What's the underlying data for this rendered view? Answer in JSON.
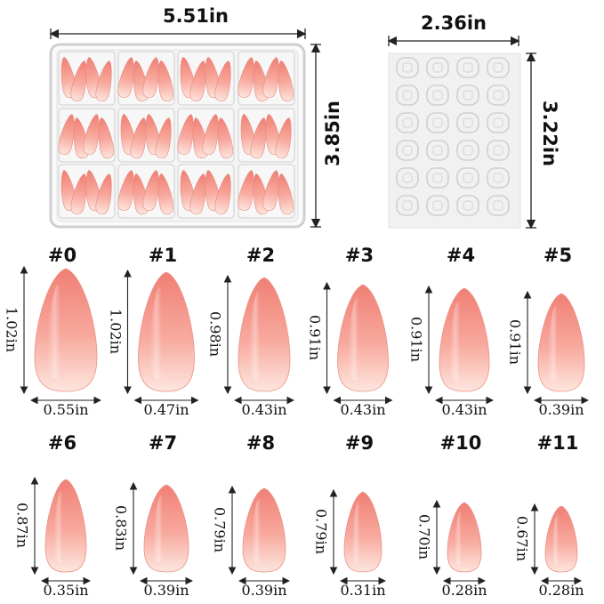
{
  "box": {
    "width_label": "5.51in",
    "height_label": "3.85in"
  },
  "sheet": {
    "width_label": "2.36in",
    "height_label": "3.22in"
  },
  "colors": {
    "nail_light": "#fde4dc",
    "nail_mid": "#f8a89c",
    "nail_deep": "#ee7d72",
    "box_frame": "#d9d9d9",
    "sheet_fill": "#f2f2f2"
  },
  "sizes": [
    {
      "num": "#0",
      "length": "1.02in",
      "width": "0.55in"
    },
    {
      "num": "#1",
      "length": "1.02in",
      "width": "0.47in"
    },
    {
      "num": "#2",
      "length": "0.98in",
      "width": "0.43in"
    },
    {
      "num": "#3",
      "length": "0.91in",
      "width": "0.43in"
    },
    {
      "num": "#4",
      "length": "0.91in",
      "width": "0.43in"
    },
    {
      "num": "#5",
      "length": "0.91in",
      "width": "0.39in"
    },
    {
      "num": "#6",
      "length": "0.87in",
      "width": "0.35in"
    },
    {
      "num": "#7",
      "length": "0.83in",
      "width": "0.39in"
    },
    {
      "num": "#8",
      "length": "0.79in",
      "width": "0.39in"
    },
    {
      "num": "#9",
      "length": "0.79in",
      "width": "0.31in"
    },
    {
      "num": "#10",
      "length": "0.70in",
      "width": "0.28in"
    },
    {
      "num": "#11",
      "length": "0.67in",
      "width": "0.28in"
    }
  ]
}
